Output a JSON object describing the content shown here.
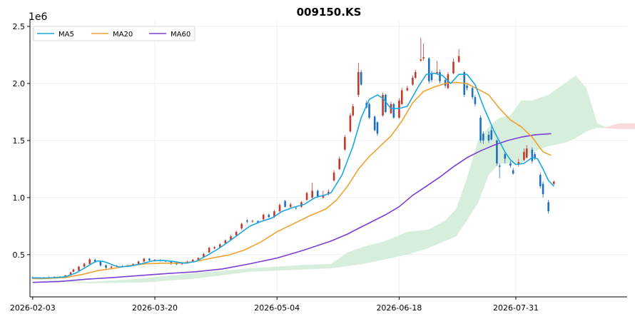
{
  "chart_data": {
    "type": "candlestick",
    "title": "009150.KS",
    "y_offset_label": "1e6",
    "ylim": [
      0.13,
      2.55
    ],
    "y_ticks": [
      "0.5",
      "1.0",
      "1.5",
      "2.0",
      "2.5"
    ],
    "y_tick_values": [
      0.5,
      1.0,
      1.5,
      2.0,
      2.5
    ],
    "x_ticks": [
      "2026-02-03",
      "2026-03-20",
      "2026-05-04",
      "2026-06-18",
      "2026-07-31"
    ],
    "x_tick_days": [
      0,
      45,
      90,
      135,
      178
    ],
    "x_range_days": [
      -1,
      219
    ],
    "grid": true,
    "legend_position": "top-left",
    "colors": {
      "up": "#c0392b",
      "down": "#1f6fbf",
      "ma5": "#1aa7e0",
      "ma20": "#f0a030",
      "ma60": "#7b3fd6",
      "cloud_bull": "#d6eedb",
      "cloud_bear": "#f9dada"
    },
    "series": [
      {
        "name": "MA5",
        "color_key": "ma5"
      },
      {
        "name": "MA20",
        "color_key": "ma20"
      },
      {
        "name": "MA60",
        "color_key": "ma60"
      }
    ],
    "candles": [
      [
        0,
        0.3,
        0.295,
        0.31,
        0.288
      ],
      [
        2,
        0.295,
        0.292,
        0.302,
        0.286
      ],
      [
        4,
        0.292,
        0.298,
        0.305,
        0.288
      ],
      [
        6,
        0.298,
        0.3,
        0.308,
        0.292
      ],
      [
        8,
        0.3,
        0.305,
        0.312,
        0.295
      ],
      [
        10,
        0.305,
        0.302,
        0.312,
        0.298
      ],
      [
        12,
        0.302,
        0.318,
        0.322,
        0.298
      ],
      [
        14,
        0.318,
        0.345,
        0.35,
        0.315
      ],
      [
        15,
        0.35,
        0.37,
        0.378,
        0.345
      ],
      [
        17,
        0.36,
        0.395,
        0.402,
        0.355
      ],
      [
        19,
        0.395,
        0.42,
        0.43,
        0.39
      ],
      [
        21,
        0.42,
        0.46,
        0.47,
        0.41
      ],
      [
        23,
        0.455,
        0.44,
        0.465,
        0.43
      ],
      [
        25,
        0.44,
        0.405,
        0.445,
        0.395
      ],
      [
        27,
        0.408,
        0.385,
        0.412,
        0.375
      ],
      [
        29,
        0.385,
        0.395,
        0.405,
        0.378
      ],
      [
        31,
        0.395,
        0.402,
        0.41,
        0.39
      ],
      [
        33,
        0.4,
        0.395,
        0.408,
        0.388
      ],
      [
        35,
        0.395,
        0.405,
        0.415,
        0.39
      ],
      [
        37,
        0.405,
        0.418,
        0.425,
        0.398
      ],
      [
        39,
        0.418,
        0.44,
        0.448,
        0.41
      ],
      [
        41,
        0.44,
        0.465,
        0.472,
        0.432
      ],
      [
        43,
        0.465,
        0.45,
        0.47,
        0.44
      ],
      [
        45,
        0.45,
        0.455,
        0.462,
        0.445
      ],
      [
        47,
        0.455,
        0.445,
        0.46,
        0.44
      ],
      [
        49,
        0.445,
        0.44,
        0.45,
        0.435
      ],
      [
        51,
        0.44,
        0.42,
        0.445,
        0.41
      ],
      [
        53,
        0.425,
        0.415,
        0.432,
        0.408
      ],
      [
        55,
        0.418,
        0.425,
        0.435,
        0.41
      ],
      [
        57,
        0.425,
        0.44,
        0.448,
        0.42
      ],
      [
        59,
        0.44,
        0.455,
        0.462,
        0.432
      ],
      [
        61,
        0.455,
        0.47,
        0.478,
        0.448
      ],
      [
        63,
        0.48,
        0.505,
        0.515,
        0.475
      ],
      [
        65,
        0.52,
        0.56,
        0.57,
        0.515
      ],
      [
        67,
        0.555,
        0.565,
        0.575,
        0.548
      ],
      [
        69,
        0.565,
        0.59,
        0.6,
        0.56
      ],
      [
        71,
        0.6,
        0.625,
        0.635,
        0.592
      ],
      [
        73,
        0.63,
        0.66,
        0.672,
        0.622
      ],
      [
        75,
        0.67,
        0.7,
        0.71,
        0.66
      ],
      [
        77,
        0.73,
        0.77,
        0.78,
        0.718
      ],
      [
        79,
        0.8,
        0.79,
        0.81,
        0.775
      ],
      [
        81,
        0.79,
        0.795,
        0.805,
        0.78
      ],
      [
        83,
        0.795,
        0.78,
        0.8,
        0.772
      ],
      [
        85,
        0.81,
        0.85,
        0.86,
        0.8
      ],
      [
        87,
        0.85,
        0.83,
        0.86,
        0.82
      ],
      [
        89,
        0.83,
        0.88,
        0.892,
        0.822
      ],
      [
        91,
        0.88,
        0.935,
        0.95,
        0.87
      ],
      [
        93,
        0.97,
        0.92,
        0.98,
        0.912
      ],
      [
        95,
        0.92,
        0.94,
        0.955,
        0.91
      ],
      [
        97,
        0.91,
        0.905,
        0.92,
        0.895
      ],
      [
        99,
        0.92,
        0.96,
        0.97,
        0.912
      ],
      [
        101,
        0.98,
        1.04,
        1.05,
        0.97
      ],
      [
        103,
        1.0,
        1.06,
        1.13,
        0.99
      ],
      [
        105,
        1.06,
        1.01,
        1.07,
        1.0
      ],
      [
        107,
        1.0,
        1.02,
        1.06,
        0.99
      ],
      [
        109,
        1.03,
        1.05,
        1.07,
        1.02
      ],
      [
        111,
        1.15,
        1.22,
        1.24,
        1.14
      ],
      [
        113,
        1.25,
        1.34,
        1.36,
        1.24
      ],
      [
        115,
        1.42,
        1.53,
        1.55,
        1.41
      ],
      [
        117,
        1.58,
        1.72,
        1.74,
        1.57
      ],
      [
        118,
        1.72,
        1.8,
        1.82,
        1.71
      ],
      [
        120,
        1.9,
        2.1,
        2.18,
        1.88
      ],
      [
        121,
        2.1,
        1.99,
        2.12,
        1.98
      ],
      [
        123,
        1.83,
        1.79,
        1.85,
        1.78
      ],
      [
        124,
        1.82,
        1.7,
        1.83,
        1.69
      ],
      [
        126,
        1.71,
        1.59,
        1.72,
        1.58
      ],
      [
        127,
        1.66,
        1.56,
        1.67,
        1.54
      ],
      [
        129,
        1.72,
        1.9,
        1.92,
        1.71
      ],
      [
        130,
        1.9,
        1.75,
        1.91,
        1.74
      ],
      [
        132,
        1.74,
        1.82,
        1.84,
        1.73
      ],
      [
        133,
        1.82,
        1.7,
        1.83,
        1.69
      ],
      [
        135,
        1.7,
        1.85,
        1.87,
        1.69
      ],
      [
        136,
        1.82,
        1.94,
        1.96,
        1.81
      ],
      [
        138,
        1.94,
        1.96,
        1.98,
        1.93
      ],
      [
        140,
        1.99,
        2.05,
        2.07,
        1.98
      ],
      [
        141,
        2.05,
        2.1,
        2.12,
        2.04
      ],
      [
        143,
        2.2,
        2.21,
        2.4,
        2.19
      ],
      [
        144,
        2.22,
        2.23,
        2.35,
        2.2
      ],
      [
        146,
        2.22,
        2.02,
        2.23,
        2.0
      ],
      [
        147,
        2.09,
        2.03,
        2.11,
        2.01
      ],
      [
        149,
        2.09,
        2.1,
        2.2,
        2.08
      ],
      [
        150,
        2.1,
        2.02,
        2.12,
        2.0
      ],
      [
        152,
        2.03,
        1.98,
        2.05,
        1.96
      ],
      [
        153,
        1.96,
        2.08,
        2.1,
        1.95
      ],
      [
        155,
        2.09,
        2.19,
        2.22,
        2.08
      ],
      [
        157,
        2.19,
        2.24,
        2.3,
        2.18
      ],
      [
        159,
        2.1,
        1.9,
        2.11,
        1.88
      ],
      [
        160,
        1.98,
        1.96,
        2.0,
        1.94
      ],
      [
        162,
        1.96,
        1.88,
        1.98,
        1.86
      ],
      [
        163,
        1.88,
        1.82,
        1.9,
        1.8
      ],
      [
        165,
        1.7,
        1.5,
        1.72,
        1.48
      ],
      [
        166,
        1.56,
        1.5,
        1.58,
        1.47
      ],
      [
        168,
        1.55,
        1.5,
        1.58,
        1.48
      ],
      [
        169,
        1.59,
        1.51,
        1.62,
        1.5
      ],
      [
        171,
        1.5,
        1.3,
        1.51,
        1.28
      ],
      [
        172,
        1.28,
        1.27,
        1.3,
        1.17
      ],
      [
        174,
        1.38,
        1.34,
        1.4,
        1.3
      ],
      [
        176,
        1.3,
        1.28,
        1.32,
        1.26
      ],
      [
        177,
        1.24,
        1.21,
        1.26,
        1.2
      ],
      [
        179,
        1.29,
        1.31,
        1.34,
        1.27
      ],
      [
        181,
        1.33,
        1.4,
        1.43,
        1.32
      ],
      [
        182,
        1.35,
        1.43,
        1.46,
        1.34
      ],
      [
        184,
        1.42,
        1.32,
        1.44,
        1.3
      ],
      [
        185,
        1.38,
        1.35,
        1.4,
        1.33
      ],
      [
        187,
        1.2,
        1.1,
        1.22,
        1.08
      ],
      [
        188,
        1.12,
        1.03,
        1.14,
        1.0
      ],
      [
        190,
        0.96,
        0.88,
        0.98,
        0.86
      ],
      [
        192,
        1.12,
        1.14,
        1.15,
        1.11
      ]
    ],
    "ma5": [
      [
        0,
        0.297
      ],
      [
        4,
        0.296
      ],
      [
        8,
        0.299
      ],
      [
        12,
        0.306
      ],
      [
        16,
        0.34
      ],
      [
        20,
        0.395
      ],
      [
        22,
        0.425
      ],
      [
        24,
        0.445
      ],
      [
        26,
        0.44
      ],
      [
        28,
        0.425
      ],
      [
        30,
        0.405
      ],
      [
        32,
        0.392
      ],
      [
        36,
        0.4
      ],
      [
        40,
        0.42
      ],
      [
        44,
        0.445
      ],
      [
        48,
        0.45
      ],
      [
        52,
        0.44
      ],
      [
        56,
        0.425
      ],
      [
        60,
        0.44
      ],
      [
        64,
        0.49
      ],
      [
        68,
        0.545
      ],
      [
        72,
        0.61
      ],
      [
        76,
        0.68
      ],
      [
        80,
        0.75
      ],
      [
        84,
        0.79
      ],
      [
        88,
        0.82
      ],
      [
        92,
        0.88
      ],
      [
        96,
        0.915
      ],
      [
        100,
        0.94
      ],
      [
        104,
        1.0
      ],
      [
        108,
        1.025
      ],
      [
        110,
        1.045
      ],
      [
        114,
        1.2
      ],
      [
        118,
        1.45
      ],
      [
        121,
        1.7
      ],
      [
        124,
        1.86
      ],
      [
        127,
        1.9
      ],
      [
        129,
        1.87
      ],
      [
        132,
        1.78
      ],
      [
        135,
        1.78
      ],
      [
        138,
        1.8
      ],
      [
        142,
        1.97
      ],
      [
        145,
        2.08
      ],
      [
        148,
        2.09
      ],
      [
        151,
        2.07
      ],
      [
        154,
        2.0
      ],
      [
        157,
        2.08
      ],
      [
        160,
        2.08
      ],
      [
        163,
        1.99
      ],
      [
        166,
        1.8
      ],
      [
        170,
        1.58
      ],
      [
        174,
        1.4
      ],
      [
        176,
        1.33
      ],
      [
        178,
        1.29
      ],
      [
        181,
        1.3
      ],
      [
        184,
        1.35
      ],
      [
        186,
        1.34
      ],
      [
        188,
        1.25
      ],
      [
        190,
        1.15
      ],
      [
        192,
        1.1
      ]
    ],
    "ma20": [
      [
        0,
        0.29
      ],
      [
        6,
        0.292
      ],
      [
        12,
        0.3
      ],
      [
        18,
        0.325
      ],
      [
        24,
        0.36
      ],
      [
        30,
        0.38
      ],
      [
        36,
        0.405
      ],
      [
        42,
        0.42
      ],
      [
        48,
        0.425
      ],
      [
        54,
        0.425
      ],
      [
        60,
        0.44
      ],
      [
        66,
        0.47
      ],
      [
        72,
        0.495
      ],
      [
        78,
        0.54
      ],
      [
        84,
        0.61
      ],
      [
        90,
        0.7
      ],
      [
        96,
        0.77
      ],
      [
        102,
        0.84
      ],
      [
        108,
        0.9
      ],
      [
        112,
        0.98
      ],
      [
        116,
        1.1
      ],
      [
        120,
        1.25
      ],
      [
        124,
        1.36
      ],
      [
        128,
        1.45
      ],
      [
        132,
        1.54
      ],
      [
        136,
        1.67
      ],
      [
        140,
        1.83
      ],
      [
        144,
        1.93
      ],
      [
        148,
        1.97
      ],
      [
        152,
        2.0
      ],
      [
        156,
        2.01
      ],
      [
        160,
        2.0
      ],
      [
        164,
        1.95
      ],
      [
        168,
        1.9
      ],
      [
        172,
        1.78
      ],
      [
        176,
        1.68
      ],
      [
        180,
        1.62
      ],
      [
        184,
        1.53
      ],
      [
        188,
        1.4
      ],
      [
        191,
        1.37
      ]
    ],
    "ma60": [
      [
        0,
        0.257
      ],
      [
        10,
        0.265
      ],
      [
        20,
        0.285
      ],
      [
        30,
        0.3
      ],
      [
        40,
        0.318
      ],
      [
        50,
        0.335
      ],
      [
        60,
        0.35
      ],
      [
        70,
        0.375
      ],
      [
        80,
        0.42
      ],
      [
        90,
        0.47
      ],
      [
        100,
        0.54
      ],
      [
        110,
        0.62
      ],
      [
        116,
        0.68
      ],
      [
        120,
        0.73
      ],
      [
        125,
        0.79
      ],
      [
        130,
        0.85
      ],
      [
        135,
        0.92
      ],
      [
        140,
        1.02
      ],
      [
        145,
        1.1
      ],
      [
        150,
        1.18
      ],
      [
        155,
        1.27
      ],
      [
        160,
        1.35
      ],
      [
        165,
        1.41
      ],
      [
        170,
        1.46
      ],
      [
        175,
        1.5
      ],
      [
        180,
        1.53
      ],
      [
        185,
        1.55
      ],
      [
        191,
        1.56
      ]
    ],
    "cloud_bull": [
      [
        0,
        0.29,
        0.285
      ],
      [
        20,
        0.26,
        0.25
      ],
      [
        40,
        0.29,
        0.255
      ],
      [
        60,
        0.34,
        0.29
      ],
      [
        80,
        0.38,
        0.35
      ],
      [
        100,
        0.41,
        0.37
      ],
      [
        110,
        0.42,
        0.38
      ],
      [
        116,
        0.52,
        0.4
      ],
      [
        122,
        0.57,
        0.42
      ],
      [
        130,
        0.62,
        0.46
      ],
      [
        138,
        0.7,
        0.5
      ],
      [
        146,
        0.72,
        0.56
      ],
      [
        152,
        0.8,
        0.62
      ],
      [
        156,
        0.9,
        0.66
      ],
      [
        160,
        1.17,
        0.8
      ],
      [
        164,
        1.5,
        0.95
      ],
      [
        168,
        1.62,
        1.2
      ],
      [
        172,
        1.7,
        1.3
      ],
      [
        176,
        1.72,
        1.3
      ],
      [
        180,
        1.85,
        1.3
      ],
      [
        184,
        1.85,
        1.4
      ],
      [
        190,
        1.9,
        1.45
      ],
      [
        196,
        2.0,
        1.48
      ],
      [
        200,
        2.07,
        1.52
      ],
      [
        204,
        1.96,
        1.58
      ],
      [
        208,
        1.65,
        1.61
      ],
      [
        212,
        1.61,
        1.61
      ]
    ],
    "cloud_bear": [
      [
        210,
        1.61,
        1.61
      ],
      [
        216,
        1.65,
        1.6
      ],
      [
        222,
        1.65,
        1.6
      ],
      [
        226,
        1.64,
        1.56
      ],
      [
        230,
        1.63,
        1.42
      ],
      [
        232,
        1.63,
        1.38
      ]
    ]
  }
}
